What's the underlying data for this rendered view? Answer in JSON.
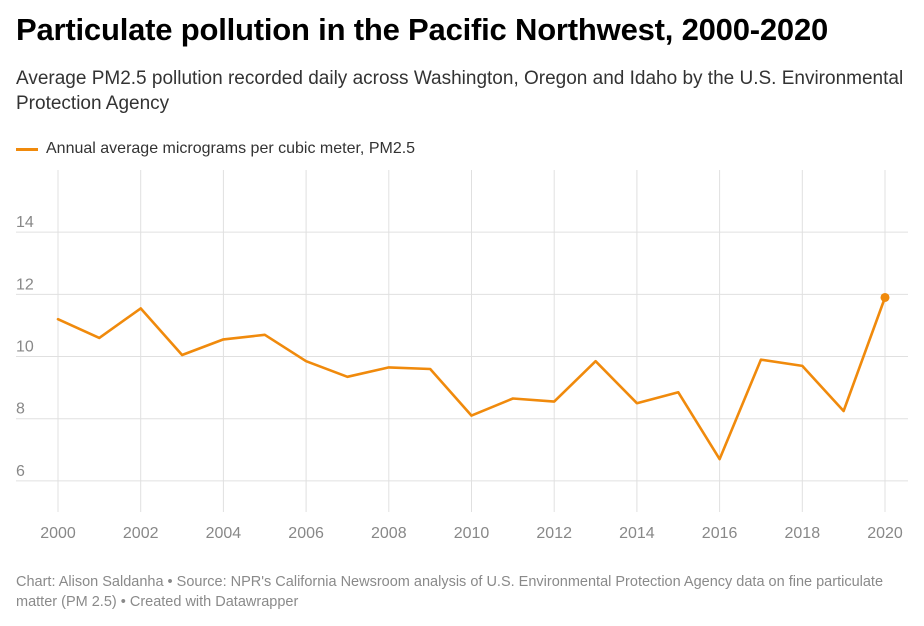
{
  "header": {
    "title": "Particulate pollution in the Pacific Northwest, 2000-2020",
    "subtitle": "Average PM2.5 pollution recorded daily across Washington, Oregon and Idaho by the U.S. Environmental Protection Agency"
  },
  "footer": {
    "credit": "Chart: Alison Saldanha • Source: NPR's California Newsroom analysis of U.S. Environmental Protection Agency data on fine particulate matter (PM 2.5) • Created with Datawrapper"
  },
  "colors": {
    "series": "#f08a0c",
    "grid": "#e0e0e0",
    "tick_text": "#888888"
  },
  "chart_data": {
    "type": "line",
    "title": "Particulate pollution in the Pacific Northwest, 2000-2020",
    "subtitle": "Average PM2.5 pollution recorded daily across Washington, Oregon and Idaho by the U.S. Environmental Protection Agency",
    "xlabel": "",
    "ylabel": "",
    "x": [
      2000,
      2001,
      2002,
      2003,
      2004,
      2005,
      2006,
      2007,
      2008,
      2009,
      2010,
      2011,
      2012,
      2013,
      2014,
      2015,
      2016,
      2017,
      2018,
      2019,
      2020
    ],
    "series": [
      {
        "name": "Annual average micrograms per cubic meter, PM2.5",
        "values": [
          11.2,
          10.6,
          11.55,
          10.05,
          10.55,
          10.7,
          9.85,
          9.35,
          9.65,
          9.6,
          8.1,
          8.65,
          8.55,
          9.85,
          8.5,
          8.85,
          6.7,
          9.9,
          9.7,
          8.25,
          11.9
        ]
      }
    ],
    "x_ticks": [
      "2000",
      "2002",
      "2004",
      "2006",
      "2008",
      "2010",
      "2012",
      "2014",
      "2016",
      "2018",
      "2020"
    ],
    "y_ticks": [
      "6",
      "8",
      "10",
      "12",
      "14"
    ],
    "xlim": [
      2000,
      2020
    ],
    "ylim": [
      5,
      16
    ],
    "grid": true,
    "legend": "top-left",
    "endpoint_marker": true
  }
}
